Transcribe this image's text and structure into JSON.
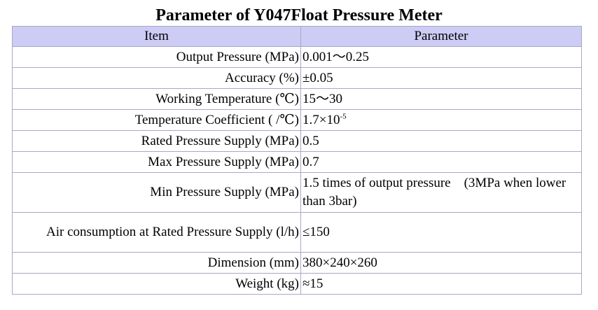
{
  "title": "Parameter of Y047Float Pressure Meter",
  "headers": {
    "item": "Item",
    "parameter": "Parameter"
  },
  "rows": [
    {
      "item": "Output Pressure (MPa)",
      "value": "0.001～0.25"
    },
    {
      "item": "Accuracy (%)",
      "value": "±0.05"
    },
    {
      "item": "Working Temperature (℃)",
      "value": "15～30"
    },
    {
      "item": "Temperature Coefficient ( /℃)",
      "value": "1.7×10",
      "value_sup": "-5"
    },
    {
      "item": "Rated Pressure Supply (MPa)",
      "value": "0.5"
    },
    {
      "item": "Max Pressure Supply (MPa)",
      "value": "0.7"
    },
    {
      "item": "Min Pressure Supply (MPa)",
      "value": "1.5 times of output pressure　(3MPa when lower than 3bar)"
    },
    {
      "item": "Air consumption at Rated Pressure Supply (l/h)",
      "value": "≤150"
    },
    {
      "item": "Dimension (mm)",
      "value": "380×240×260"
    },
    {
      "item": "Weight (kg)",
      "value": "≈15"
    }
  ]
}
